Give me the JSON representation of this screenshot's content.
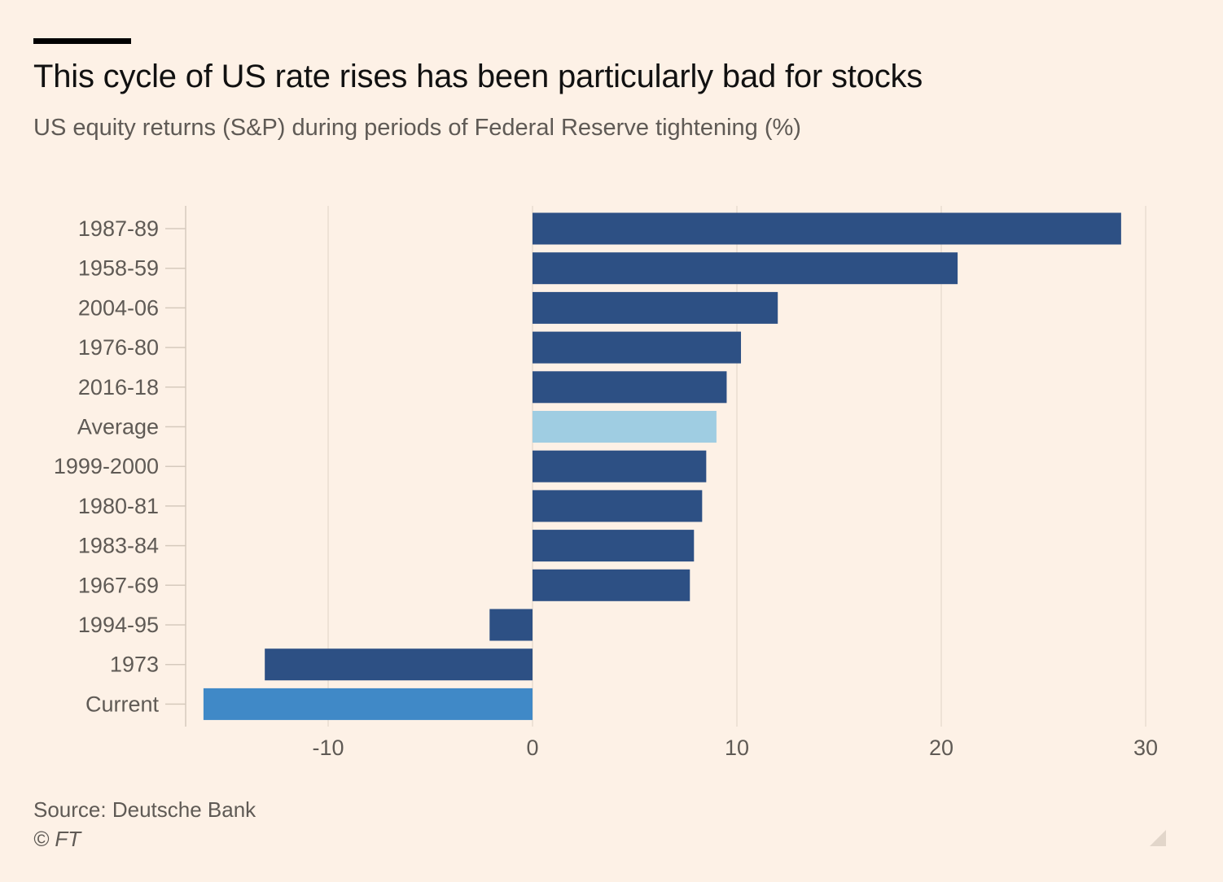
{
  "header": {
    "title": "This cycle of US rate rises has been particularly bad for stocks",
    "subtitle": "US equity returns (S&P) during periods of Federal Reserve tightening (%)"
  },
  "footer": {
    "source": "Source: Deutsche Bank",
    "copyright": "© FT"
  },
  "icons": {
    "corner": "resize-corner-icon"
  },
  "colors": {
    "background": "#fdf1e6",
    "default_bar": "#2d5084",
    "average_bar": "#9fcde2",
    "current_bar": "#4089c7",
    "grid": "#e9ddd1",
    "axis": "#d6cabd"
  },
  "chart_data": {
    "type": "bar",
    "orientation": "horizontal",
    "title": "This cycle of US rate rises has been particularly bad for stocks",
    "subtitle": "US equity returns (S&P) during periods of Federal Reserve tightening (%)",
    "categories": [
      "1987-89",
      "1958-59",
      "2004-06",
      "1976-80",
      "2016-18",
      "Average",
      "1999-2000",
      "1980-81",
      "1983-84",
      "1967-69",
      "1994-95",
      "1973",
      "Current"
    ],
    "values": [
      28.8,
      20.8,
      12.0,
      10.2,
      9.5,
      9.0,
      8.5,
      8.3,
      7.9,
      7.7,
      -2.1,
      -13.1,
      -16.1
    ],
    "bar_colors": [
      "#2d5084",
      "#2d5084",
      "#2d5084",
      "#2d5084",
      "#2d5084",
      "#9fcde2",
      "#2d5084",
      "#2d5084",
      "#2d5084",
      "#2d5084",
      "#2d5084",
      "#2d5084",
      "#4089c7"
    ],
    "xlim": [
      -17,
      30
    ],
    "xticks": [
      -10,
      0,
      10,
      20,
      30
    ],
    "xtick_labels": [
      "-10",
      "0",
      "10",
      "20",
      "30"
    ],
    "grid": true,
    "legend": "none"
  }
}
